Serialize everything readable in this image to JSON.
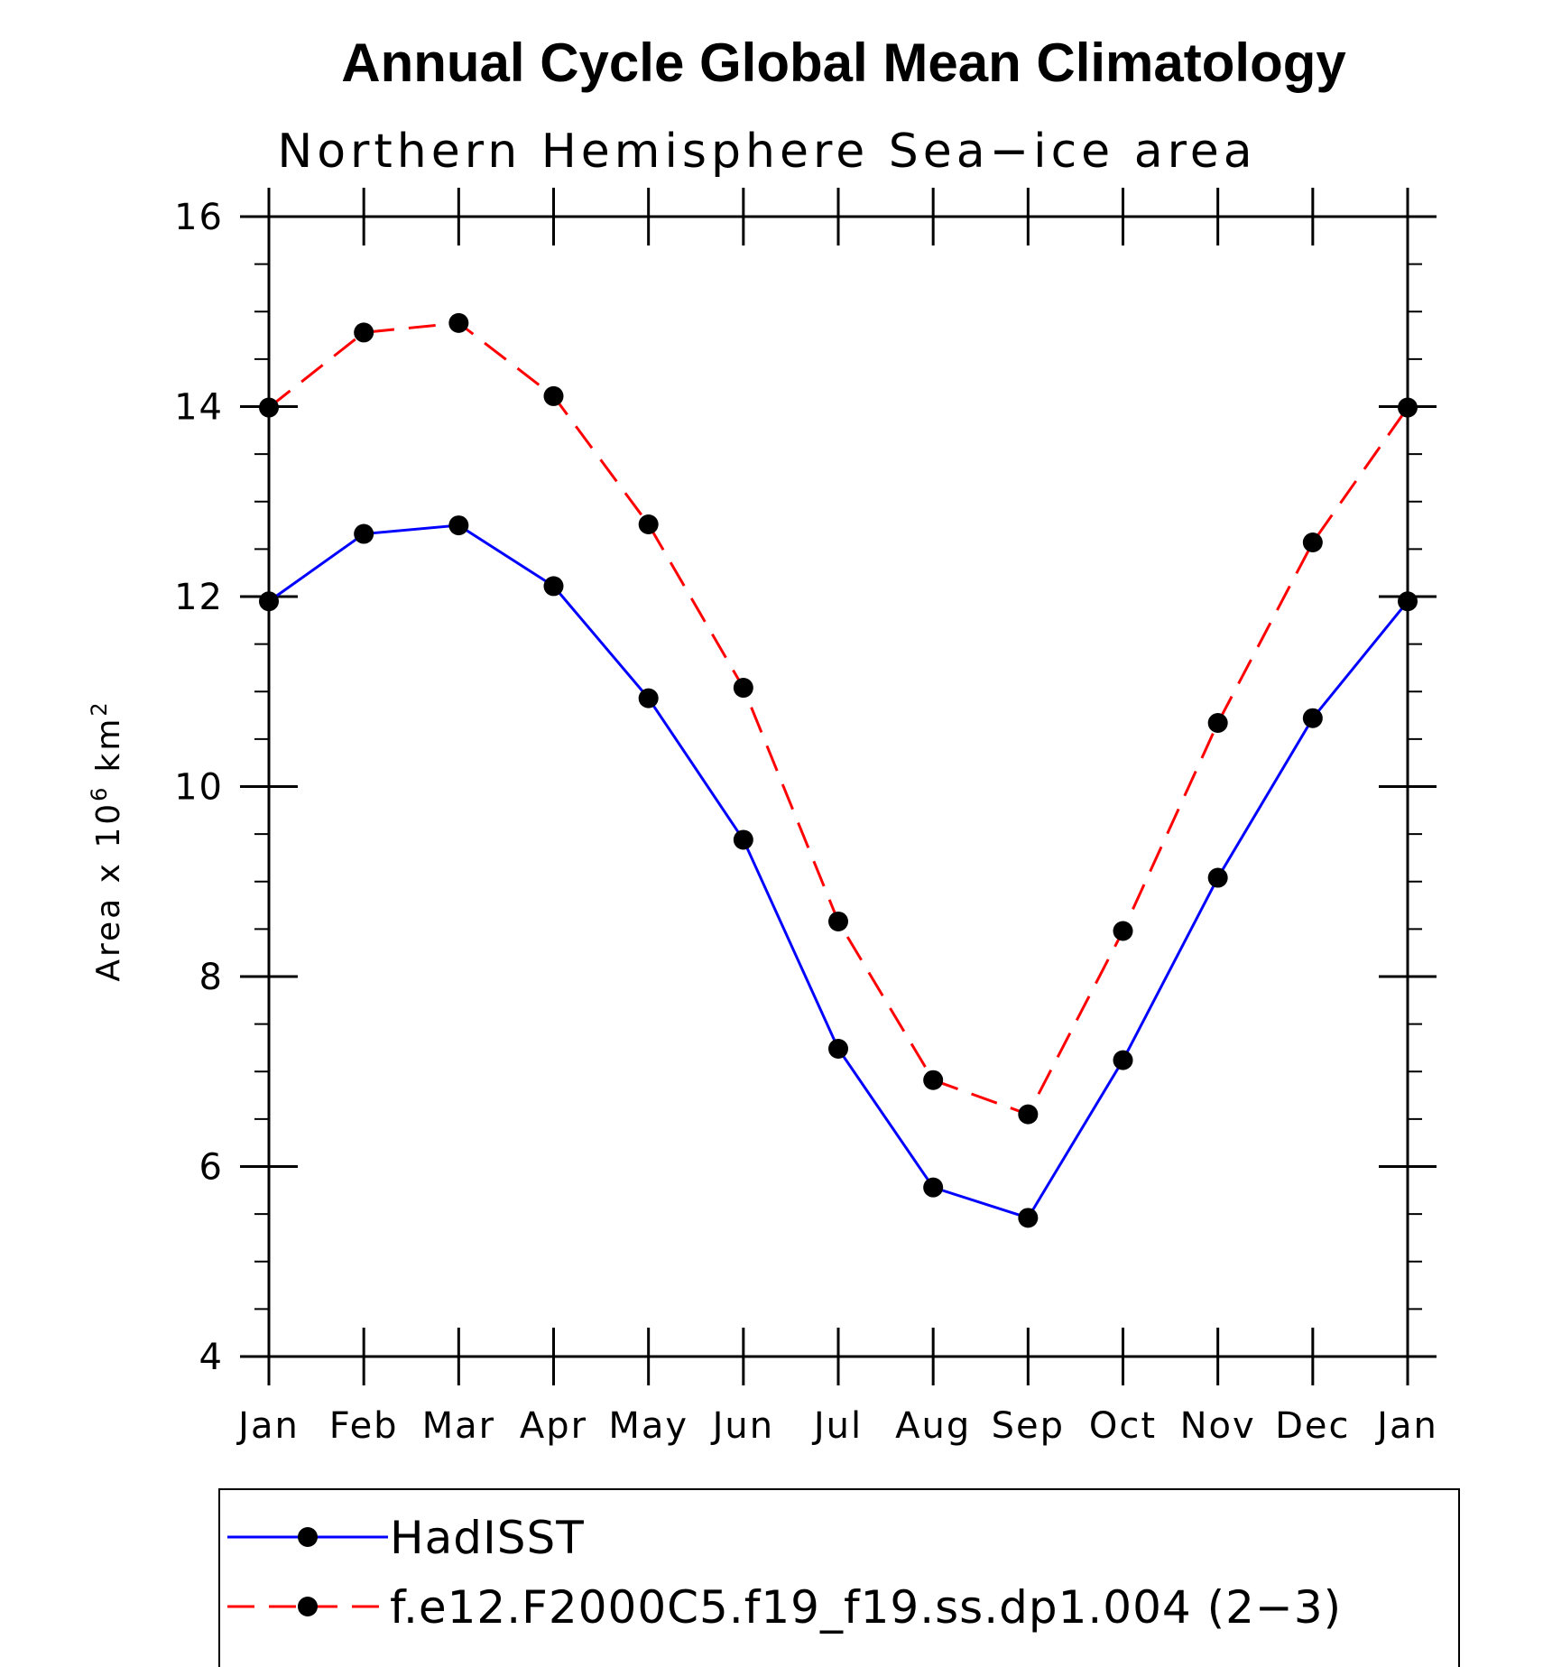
{
  "chart_data": {
    "type": "line",
    "title": "Annual Cycle Global Mean Climatology",
    "subtitle": "Northern Hemisphere Sea−ice area",
    "ylabel_prefix": "Area x 10",
    "ylabel_exponent": "6",
    "ylabel_unit": "km",
    "ylabel_unit_exponent": "2",
    "categories": [
      "Jan",
      "Feb",
      "Mar",
      "Apr",
      "May",
      "Jun",
      "Jul",
      "Aug",
      "Sep",
      "Oct",
      "Nov",
      "Dec",
      "Jan"
    ],
    "ylim": [
      4,
      16
    ],
    "yticks": [
      4,
      6,
      8,
      10,
      12,
      14,
      16
    ],
    "legend_placement": "bottom",
    "series": [
      {
        "name": "HadISST",
        "color": "#0000ff",
        "dash": "solid",
        "values": [
          11.95,
          12.66,
          12.75,
          12.11,
          10.93,
          9.44,
          7.24,
          5.78,
          5.46,
          7.12,
          9.04,
          10.72,
          11.95
        ]
      },
      {
        "name": "f.e12.F2000C5.f19_f19.ss.dp1.004 (2−3)",
        "color": "#ff0000",
        "dash": "dashed",
        "values": [
          13.99,
          14.78,
          14.88,
          14.11,
          12.76,
          11.04,
          8.58,
          6.91,
          6.55,
          8.48,
          10.67,
          12.57,
          13.99
        ]
      }
    ]
  }
}
